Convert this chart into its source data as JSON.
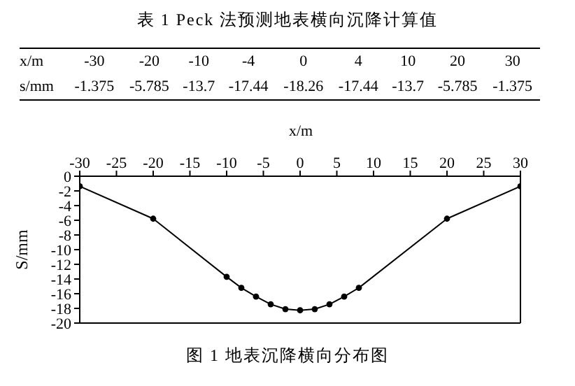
{
  "chart_data": [
    {
      "type": "other",
      "title": "表 1 Peck 法预测地表横向沉降计算值",
      "annotations": [
        "x/m",
        "-30",
        "-20",
        "-10",
        "-4",
        "0",
        "4",
        "10",
        "20",
        "30",
        "s/mm",
        "-1.375",
        "-5.785",
        "-13.7",
        "-17.44",
        "-18.26",
        "-17.44",
        "-13.7",
        "-5.785",
        "-1.375"
      ]
    },
    {
      "type": "line",
      "xlabel": "x/m",
      "ylabel": "S/mm",
      "annotations": [
        "图 1 地表沉降横向分布图"
      ],
      "x": [
        -30,
        -20,
        -10,
        -8,
        -6,
        -4,
        -2,
        0,
        2,
        4,
        6,
        8,
        20,
        30
      ],
      "series": [
        {
          "color": "#000000",
          "values": [
            -1.375,
            -5.785,
            -13.7,
            -15.2,
            -16.4,
            -17.44,
            -18.1,
            -18.26,
            -18.1,
            -17.44,
            -16.4,
            -15.2,
            -5.785,
            -1.375
          ]
        }
      ],
      "xlim": [
        -30,
        30
      ],
      "xticks": [
        -30,
        -25,
        -20,
        -15,
        -10,
        -5,
        0,
        5,
        10,
        15,
        20,
        25,
        30
      ],
      "ylim": [
        -20,
        0
      ],
      "yticks": [
        -20,
        -18,
        -16,
        -14,
        -12,
        -10,
        -8,
        -6,
        -4,
        -2,
        0
      ],
      "marker": "circle",
      "line_style": "solid",
      "grid": false
    }
  ]
}
